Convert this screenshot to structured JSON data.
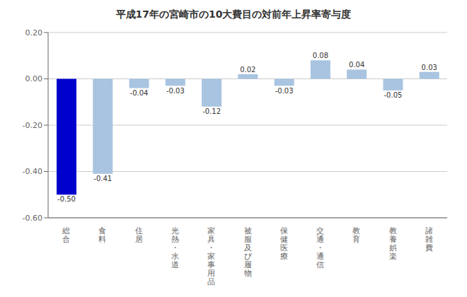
{
  "chart_data": {
    "type": "bar",
    "title": "平成17年の宮崎市の10大費目の対前年上昇率寄与度",
    "categories": [
      "総\n合",
      "食\n料",
      "住\n居",
      "光\n熱\n・\n水\n道",
      "家\n具\n・\n家\n事\n用\n品",
      "被\n服\n及\nび\n履\n物",
      "保\n健\n医\n療",
      "交\n通\n・\n通\n信",
      "教\n育",
      "教\n養\n娯\n楽",
      "諸\n雑\n費"
    ],
    "values": [
      -0.5,
      -0.41,
      -0.04,
      -0.03,
      -0.12,
      0.02,
      -0.03,
      0.08,
      0.04,
      -0.05,
      0.03
    ],
    "value_labels": [
      "-0.50",
      "-0.41",
      "-0.04",
      "-0.03",
      "-0.12",
      "0.02",
      "-0.03",
      "0.08",
      "0.04",
      "-0.05",
      "0.03"
    ],
    "data_labels": true,
    "colors": [
      "#0000cc",
      "#a8c4e0",
      "#a8c4e0",
      "#a8c4e0",
      "#a8c4e0",
      "#a8c4e0",
      "#a8c4e0",
      "#a8c4e0",
      "#a8c4e0",
      "#a8c4e0",
      "#a8c4e0"
    ],
    "ylim": [
      -0.6,
      0.2
    ],
    "yticks": [
      {
        "value": -0.6,
        "label": "-0.60"
      },
      {
        "value": -0.4,
        "label": "-0.40"
      },
      {
        "value": -0.2,
        "label": "-0.20"
      },
      {
        "value": 0.0,
        "label": "0.00"
      },
      {
        "value": 0.2,
        "label": "0.20"
      }
    ],
    "grid": true
  }
}
